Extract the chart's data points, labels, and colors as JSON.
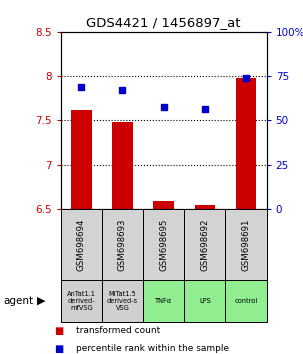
{
  "title": "GDS4421 / 1456897_at",
  "categories": [
    "GSM698694",
    "GSM698693",
    "GSM698695",
    "GSM698692",
    "GSM698691"
  ],
  "agent_labels": [
    "AnTat1.1\nderived-\nmfVSG",
    "MiTat1.5\nderived-s\nVSG",
    "TNFα",
    "LPS",
    "control"
  ],
  "agent_bg_colors": [
    "#d0d0d0",
    "#d0d0d0",
    "#90ee90",
    "#90ee90",
    "#90ee90"
  ],
  "red_values": [
    7.62,
    7.48,
    6.59,
    6.54,
    7.98
  ],
  "blue_values": [
    7.88,
    7.84,
    7.65,
    7.63,
    7.98
  ],
  "ylim_left": [
    6.5,
    8.5
  ],
  "ylim_right": [
    0,
    100
  ],
  "yticks_left": [
    6.5,
    7.0,
    7.5,
    8.0,
    8.5
  ],
  "ytick_labels_left": [
    "6.5",
    "7",
    "7.5",
    "8",
    "8.5"
  ],
  "yticks_right": [
    0,
    25,
    50,
    75,
    100
  ],
  "ytick_labels_right": [
    "0",
    "25",
    "50",
    "75",
    "100%"
  ],
  "hlines": [
    7.0,
    7.5,
    8.0
  ],
  "bar_bottom": 6.5,
  "left_color": "#cc0000",
  "right_color": "#0000cc",
  "legend_red": "transformed count",
  "legend_blue": "percentile rank within the sample"
}
